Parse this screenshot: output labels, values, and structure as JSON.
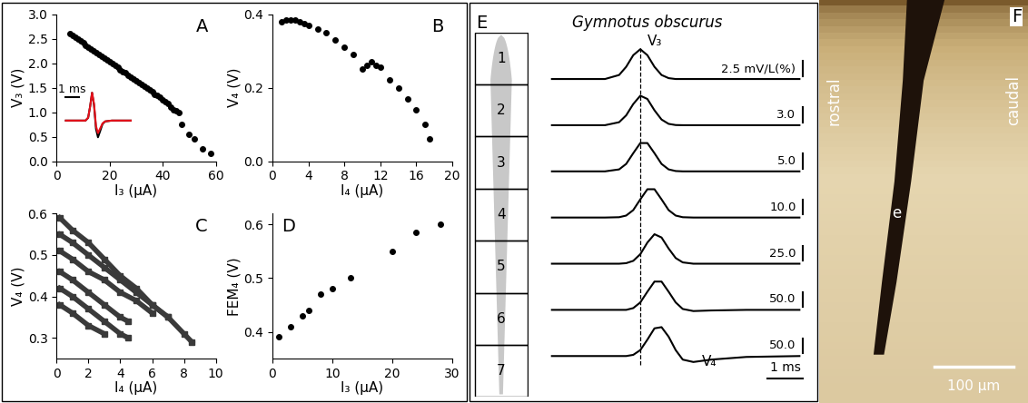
{
  "chart_data": [
    {
      "type": "scatter",
      "panel_label": "A",
      "x_label": "I₃ (µA)",
      "y_label": "V₃ (V)",
      "xlim": [
        0,
        60
      ],
      "ylim": [
        0,
        3
      ],
      "xticks": [
        0,
        20,
        40,
        60
      ],
      "yticks": [
        {
          "value": 0,
          "label": "0.0"
        },
        0.5,
        {
          "value": 1,
          "label": "1.0"
        },
        1.5,
        {
          "value": 2,
          "label": "2.0"
        },
        2.5,
        {
          "value": 3,
          "label": "3.0"
        }
      ],
      "series": [
        {
          "color": "#000000",
          "marker": "circle",
          "x": [
            5,
            6,
            7,
            8,
            9,
            10,
            11,
            12,
            13,
            14,
            15,
            16,
            17,
            18,
            19,
            20,
            21,
            22,
            23,
            24,
            25,
            26,
            27,
            28,
            29,
            30,
            31,
            32,
            33,
            34,
            35,
            36,
            37,
            38,
            39,
            40,
            41,
            42,
            43,
            44,
            45,
            46,
            47,
            50,
            52,
            55,
            58
          ],
          "values": [
            2.6,
            2.56,
            2.52,
            2.49,
            2.45,
            2.41,
            2.37,
            2.33,
            2.29,
            2.26,
            2.22,
            2.18,
            2.14,
            2.1,
            2.06,
            2.03,
            1.99,
            1.95,
            1.91,
            1.87,
            1.83,
            1.8,
            1.76,
            1.72,
            1.68,
            1.64,
            1.6,
            1.57,
            1.53,
            1.49,
            1.45,
            1.41,
            1.37,
            1.34,
            1.3,
            1.26,
            1.22,
            1.18,
            1.1,
            1.05,
            1.02,
            1.0,
            0.75,
            0.55,
            0.45,
            0.25,
            0.15
          ]
        }
      ],
      "inset": {
        "type": "line",
        "tick_labels": false,
        "x": [
          -2,
          -0.5,
          -0.3,
          -0.15,
          0,
          0.15,
          0.3,
          0.45,
          0.6,
          0.8,
          1.0,
          1.5,
          3
        ],
        "series": [
          {
            "color": "#000000",
            "values": [
              0,
              0,
              0.1,
              0.5,
              1.0,
              0.55,
              -0.3,
              -0.6,
              -0.4,
              -0.12,
              -0.03,
              0,
              0
            ]
          },
          {
            "color": "#e8101a",
            "values": [
              0,
              0,
              0.1,
              0.5,
              1.0,
              0.6,
              -0.2,
              -0.45,
              -0.3,
              -0.1,
              -0.03,
              0,
              0
            ]
          }
        ],
        "scale_bar": {
          "value": 1,
          "label": "1 ms"
        }
      }
    },
    {
      "type": "scatter",
      "panel_label": "B",
      "x_label": "I₄ (µA)",
      "y_label": "V₄ (V)",
      "xlim": [
        0,
        20
      ],
      "ylim": [
        0,
        0.4
      ],
      "xticks": [
        0,
        4,
        8,
        12,
        16,
        20
      ],
      "yticks": [
        {
          "value": 0,
          "label": "0.0"
        },
        0.2,
        0.4
      ],
      "series": [
        {
          "color": "#000000",
          "marker": "circle",
          "x": [
            1,
            1.5,
            2,
            2.5,
            3,
            3.5,
            4,
            5,
            6,
            7,
            8,
            9,
            10,
            10.5,
            11,
            11.5,
            12,
            13,
            14,
            15,
            16,
            17,
            17.5
          ],
          "values": [
            0.38,
            0.385,
            0.385,
            0.385,
            0.38,
            0.375,
            0.37,
            0.36,
            0.35,
            0.33,
            0.31,
            0.29,
            0.25,
            0.26,
            0.27,
            0.26,
            0.255,
            0.22,
            0.2,
            0.17,
            0.14,
            0.1,
            0.06
          ]
        }
      ]
    },
    {
      "type": "scatter",
      "panel_label": "C",
      "x_label": "I₄ (µA)",
      "y_label": "V₄ (V)",
      "xlim": [
        0,
        10
      ],
      "ylim": [
        0.25,
        0.6
      ],
      "xticks": [
        0,
        2,
        4,
        6,
        8,
        10
      ],
      "yticks": [
        0.3,
        0.4,
        0.5,
        0.6
      ],
      "series": [
        {
          "color": "#3a3a3a",
          "marker": "square",
          "line_style": "solid",
          "x": [
            0.2,
            1,
            2,
            3,
            4,
            5,
            6,
            7,
            8,
            8.5
          ],
          "values": [
            0.59,
            0.56,
            0.53,
            0.49,
            0.45,
            0.42,
            0.38,
            0.35,
            0.31,
            0.29
          ]
        },
        {
          "color": "#3a3a3a",
          "marker": "square",
          "line_style": "solid",
          "x": [
            0.2,
            1,
            2,
            3,
            4,
            5,
            6,
            7
          ],
          "values": [
            0.55,
            0.53,
            0.5,
            0.47,
            0.44,
            0.41,
            0.38,
            0.35
          ]
        },
        {
          "color": "#3a3a3a",
          "marker": "square",
          "line_style": "solid",
          "x": [
            0.2,
            1,
            2,
            3,
            4,
            5,
            6
          ],
          "values": [
            0.51,
            0.49,
            0.46,
            0.44,
            0.41,
            0.39,
            0.36
          ]
        },
        {
          "color": "#3a3a3a",
          "marker": "square",
          "line_style": "solid",
          "x": [
            0.2,
            1,
            2,
            3,
            4,
            4.5
          ],
          "values": [
            0.46,
            0.44,
            0.41,
            0.38,
            0.35,
            0.34
          ]
        },
        {
          "color": "#3a3a3a",
          "marker": "square",
          "line_style": "solid",
          "x": [
            0.2,
            1,
            2,
            3,
            4,
            4.5
          ],
          "values": [
            0.42,
            0.4,
            0.37,
            0.34,
            0.31,
            0.3
          ]
        },
        {
          "color": "#3a3a3a",
          "marker": "square",
          "line_style": "solid",
          "x": [
            0.2,
            1,
            2,
            3
          ],
          "values": [
            0.38,
            0.36,
            0.33,
            0.31
          ]
        }
      ]
    },
    {
      "type": "scatter",
      "panel_label": "D",
      "x_label": "I₃ (µA)",
      "y_label": "FEM₄ (V)",
      "xlim": [
        0,
        30
      ],
      "ylim": [
        0.35,
        0.62
      ],
      "xticks": [
        0,
        10,
        20,
        30
      ],
      "yticks": [
        0.4,
        0.5,
        0.6
      ],
      "series": [
        {
          "color": "#000000",
          "marker": "circle",
          "x": [
            1,
            3,
            5,
            6,
            8,
            10,
            13,
            20,
            24,
            28
          ],
          "values": [
            0.39,
            0.41,
            0.43,
            0.44,
            0.47,
            0.48,
            0.5,
            0.55,
            0.585,
            0.6
          ]
        }
      ]
    }
  ],
  "diagrams": [
    {
      "panel_label": "E",
      "title": "Gymnotus obscurus",
      "segments": [
        "1",
        "2",
        "3",
        "4",
        "5",
        "6",
        "7"
      ],
      "traces": {
        "t": [
          -2.5,
          -1.0,
          -0.6,
          -0.4,
          -0.2,
          0,
          0.2,
          0.4,
          0.6,
          0.8,
          1.0,
          1.2,
          1.5,
          2.0,
          3.0,
          4.5
        ],
        "series": [
          {
            "scale_label": "2.5 mV/L(%)",
            "peak_label": "V₃",
            "values": [
              0,
              0,
              0.135,
              0.41,
              0.8,
              1.0,
              0.8,
              0.41,
              0.135,
              0.03,
              0,
              0,
              0,
              0,
              0,
              0
            ]
          },
          {
            "scale_label": "3.0",
            "values": [
              0,
              0,
              0.1,
              0.33,
              0.71,
              0.99,
              0.88,
              0.5,
              0.19,
              0.045,
              0.005,
              0,
              0,
              0,
              0,
              0
            ]
          },
          {
            "scale_label": "5.0",
            "values": [
              0,
              0,
              0.066,
              0.25,
              0.61,
              0.95,
              0.95,
              0.61,
              0.25,
              0.066,
              0.011,
              0,
              0,
              0,
              0,
              0
            ]
          },
          {
            "scale_label": "10.0",
            "values": [
              0,
              0,
              0.011,
              0.066,
              0.25,
              0.61,
              0.95,
              0.95,
              0.61,
              0.25,
              0.066,
              0.011,
              0,
              0,
              0,
              0
            ]
          },
          {
            "scale_label": "25.0",
            "values": [
              0,
              0,
              0,
              0.018,
              0.096,
              0.32,
              0.71,
              0.99,
              0.88,
              0.51,
              0.19,
              0.044,
              0,
              0,
              0,
              0
            ]
          },
          {
            "scale_label": "50.0",
            "values": [
              0,
              0,
              0,
              0,
              0.06,
              0.25,
              0.61,
              0.95,
              0.95,
              0.61,
              0.25,
              0.03,
              -0.04,
              -0.02,
              0,
              0
            ]
          },
          {
            "scale_label": "50.0",
            "peak_label": "V₄",
            "values": [
              0,
              0,
              0,
              0,
              0.04,
              0.2,
              0.55,
              0.93,
              0.97,
              0.65,
              0.2,
              -0.12,
              -0.2,
              -0.12,
              -0.03,
              0
            ]
          }
        ]
      },
      "reference_time": 0,
      "scale_bar": {
        "value": 1,
        "label": "1 ms"
      }
    },
    {
      "panel_label": "F",
      "labels": [
        "rostral",
        "caudal",
        "e"
      ],
      "scale_bar_label": "100 µm"
    }
  ]
}
